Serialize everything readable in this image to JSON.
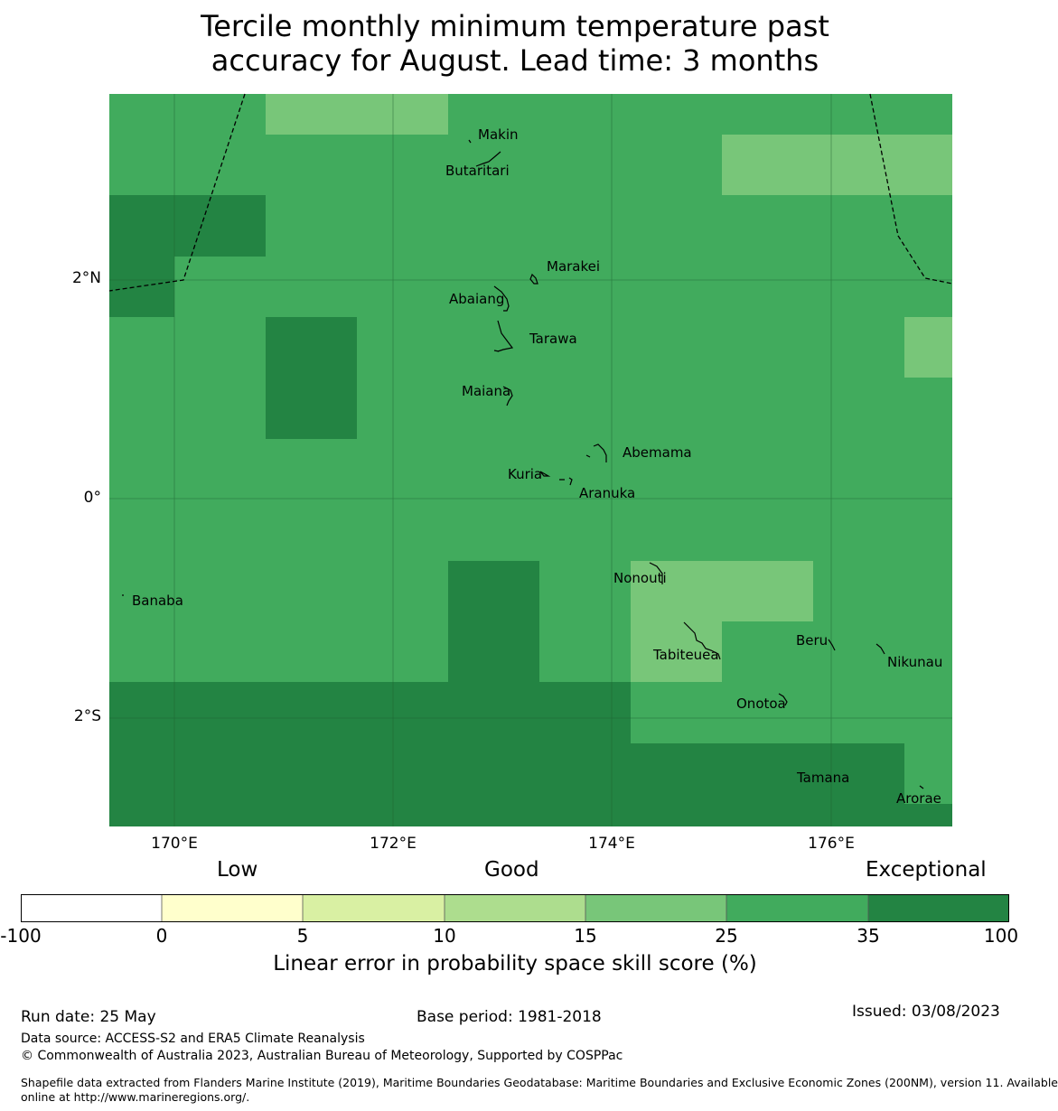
{
  "title_line1": "Tercile monthly minimum temperature past",
  "title_line2": "accuracy for August. Lead time: 3 months",
  "colors": {
    "pale_green": "#78c679",
    "mid_green": "#41ab5d",
    "dark_green": "#238443"
  },
  "lat_labels": [
    "2°N",
    "0°",
    "2°S"
  ],
  "lon_labels": [
    "170°E",
    "172°E",
    "174°E",
    "176°E"
  ],
  "islands": {
    "makin": "Makin",
    "butaritari": "Butaritari",
    "marakei": "Marakei",
    "abaiang": "Abaiang",
    "tarawa": "Tarawa",
    "maiana": "Maiana",
    "abemama": "Abemama",
    "kuria": "Kuria",
    "aranuka": "Aranuka",
    "nonouti": "Nonouti",
    "banaba": "Banaba",
    "tabiteuea": "Tabiteuea",
    "beru": "Beru",
    "nikunau": "Nikunau",
    "onotoa": "Onotoa",
    "tamana": "Tamana",
    "arorae": "Arorae"
  },
  "legend": {
    "categories": [
      "Low",
      "Good",
      "Exceptional"
    ],
    "ticks": [
      "-100",
      "0",
      "5",
      "10",
      "15",
      "25",
      "35",
      "100"
    ],
    "colors": [
      "#ffffff",
      "#ffffcc",
      "#d9f0a3",
      "#addd8e",
      "#78c679",
      "#41ab5d",
      "#238443"
    ],
    "title": "Linear error in probability space skill score (%)"
  },
  "footer": {
    "run_date": "Run date: 25 May",
    "base_period": "Base period: 1981-2018",
    "issued": "Issued: 03/08/2023",
    "data_source": "Data source: ACCESS-S2 and ERA5 Climate Reanalysis",
    "copyright": "© Commonwealth of Australia 2023, Australian Bureau of Meteorology, Supported by COSPPac",
    "shapefile_line1": "Shapefile data extracted from Flanders Marine Institute (2019), Maritime Boundaries Geodatabase: Maritime Boundaries and Exclusive Economic Zones (200NM), version 11. Available",
    "shapefile_line2": "online at http://www.marineregions.org/."
  }
}
